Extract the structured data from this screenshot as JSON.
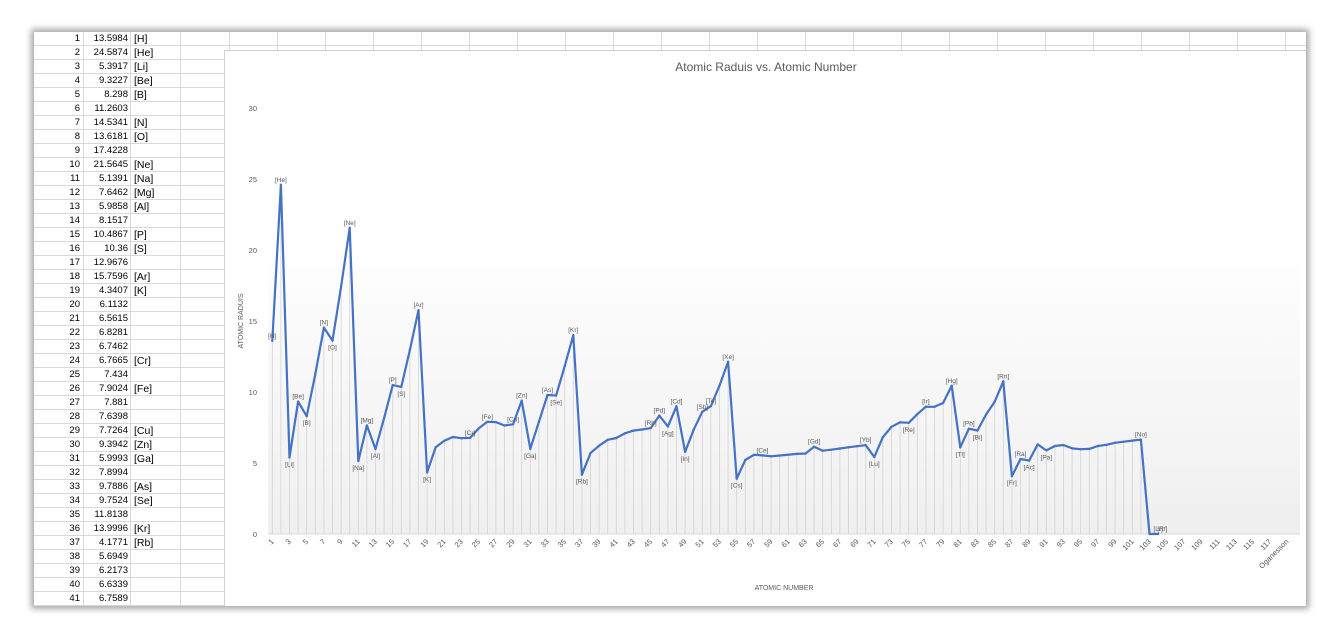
{
  "sheet": {
    "rows": [
      {
        "n": "1",
        "v": "13.5984",
        "l": "[H]"
      },
      {
        "n": "2",
        "v": "24.5874",
        "l": "[He]"
      },
      {
        "n": "3",
        "v": "5.3917",
        "l": "[Li]"
      },
      {
        "n": "4",
        "v": "9.3227",
        "l": "[Be]"
      },
      {
        "n": "5",
        "v": "8.298",
        "l": "[B]"
      },
      {
        "n": "6",
        "v": "11.2603",
        "l": ""
      },
      {
        "n": "7",
        "v": "14.5341",
        "l": "[N]"
      },
      {
        "n": "8",
        "v": "13.6181",
        "l": "[O]"
      },
      {
        "n": "9",
        "v": "17.4228",
        "l": ""
      },
      {
        "n": "10",
        "v": "21.5645",
        "l": "[Ne]"
      },
      {
        "n": "11",
        "v": "5.1391",
        "l": "[Na]"
      },
      {
        "n": "12",
        "v": "7.6462",
        "l": "[Mg]"
      },
      {
        "n": "13",
        "v": "5.9858",
        "l": "[Al]"
      },
      {
        "n": "14",
        "v": "8.1517",
        "l": ""
      },
      {
        "n": "15",
        "v": "10.4867",
        "l": "[P]"
      },
      {
        "n": "16",
        "v": "10.36",
        "l": "[S]"
      },
      {
        "n": "17",
        "v": "12.9676",
        "l": ""
      },
      {
        "n": "18",
        "v": "15.7596",
        "l": "[Ar]"
      },
      {
        "n": "19",
        "v": "4.3407",
        "l": "[K]"
      },
      {
        "n": "20",
        "v": "6.1132",
        "l": ""
      },
      {
        "n": "21",
        "v": "6.5615",
        "l": ""
      },
      {
        "n": "22",
        "v": "6.8281",
        "l": ""
      },
      {
        "n": "23",
        "v": "6.7462",
        "l": ""
      },
      {
        "n": "24",
        "v": "6.7665",
        "l": "[Cr]"
      },
      {
        "n": "25",
        "v": "7.434",
        "l": ""
      },
      {
        "n": "26",
        "v": "7.9024",
        "l": "[Fe]"
      },
      {
        "n": "27",
        "v": "7.881",
        "l": ""
      },
      {
        "n": "28",
        "v": "7.6398",
        "l": ""
      },
      {
        "n": "29",
        "v": "7.7264",
        "l": "[Cu]"
      },
      {
        "n": "30",
        "v": "9.3942",
        "l": "[Zn]"
      },
      {
        "n": "31",
        "v": "5.9993",
        "l": "[Ga]"
      },
      {
        "n": "32",
        "v": "7.8994",
        "l": ""
      },
      {
        "n": "33",
        "v": "9.7886",
        "l": "[As]"
      },
      {
        "n": "34",
        "v": "9.7524",
        "l": "[Se]"
      },
      {
        "n": "35",
        "v": "11.8138",
        "l": ""
      },
      {
        "n": "36",
        "v": "13.9996",
        "l": "[Kr]"
      },
      {
        "n": "37",
        "v": "4.1771",
        "l": "[Rb]"
      },
      {
        "n": "38",
        "v": "5.6949",
        "l": ""
      },
      {
        "n": "39",
        "v": "6.2173",
        "l": ""
      },
      {
        "n": "40",
        "v": "6.6339",
        "l": ""
      },
      {
        "n": "41",
        "v": "6.7589",
        "l": ""
      }
    ]
  },
  "chart_data": {
    "type": "line",
    "title": "Atomic Raduis vs. Atomic Number",
    "xlabel": "ATOMIC NUMBER",
    "ylabel": "ATOMIC RADUIS",
    "ylim": [
      0,
      30
    ],
    "yticks": [
      0,
      5,
      10,
      15,
      20,
      25,
      30
    ],
    "grid": false,
    "legend": "none",
    "line_color": "#4472C4",
    "x_tick_labels": [
      "1",
      "3",
      "5",
      "7",
      "9",
      "11",
      "13",
      "15",
      "17",
      "19",
      "21",
      "23",
      "25",
      "27",
      "29",
      "31",
      "33",
      "35",
      "37",
      "39",
      "41",
      "43",
      "45",
      "47",
      "49",
      "51",
      "53",
      "55",
      "57",
      "59",
      "61",
      "63",
      "65",
      "67",
      "69",
      "71",
      "73",
      "75",
      "77",
      "79",
      "81",
      "83",
      "85",
      "87",
      "89",
      "91",
      "93",
      "95",
      "97",
      "99",
      "101",
      "103",
      "105",
      "107",
      "109",
      "111",
      "113",
      "115",
      "117",
      "Oganesson"
    ],
    "x": [
      1,
      2,
      3,
      4,
      5,
      6,
      7,
      8,
      9,
      10,
      11,
      12,
      13,
      14,
      15,
      16,
      17,
      18,
      19,
      20,
      21,
      22,
      23,
      24,
      25,
      26,
      27,
      28,
      29,
      30,
      31,
      32,
      33,
      34,
      35,
      36,
      37,
      38,
      39,
      40,
      41,
      42,
      43,
      44,
      45,
      46,
      47,
      48,
      49,
      50,
      51,
      52,
      53,
      54,
      55,
      56,
      57,
      58,
      59,
      60,
      61,
      62,
      63,
      64,
      65,
      66,
      67,
      68,
      69,
      70,
      71,
      72,
      73,
      74,
      75,
      76,
      77,
      78,
      79,
      80,
      81,
      82,
      83,
      84,
      85,
      86,
      87,
      88,
      89,
      90,
      91,
      92,
      93,
      94,
      95,
      96,
      97,
      98,
      99,
      100,
      101,
      102,
      103,
      104
    ],
    "values": [
      13.5984,
      24.5874,
      5.3917,
      9.3227,
      8.298,
      11.2603,
      14.5341,
      13.6181,
      17.4228,
      21.5645,
      5.1391,
      7.6462,
      5.9858,
      8.1517,
      10.4867,
      10.36,
      12.9676,
      15.7596,
      4.3407,
      6.1132,
      6.5615,
      6.8281,
      6.7462,
      6.7665,
      7.434,
      7.9024,
      7.881,
      7.6398,
      7.7264,
      9.3942,
      5.9993,
      7.8994,
      9.7886,
      9.7524,
      11.8138,
      13.9996,
      4.1771,
      5.6949,
      6.2173,
      6.6339,
      6.7589,
      7.0924,
      7.28,
      7.3605,
      7.4589,
      8.3369,
      7.5762,
      8.9938,
      5.7864,
      7.3439,
      8.6084,
      9.0096,
      10.4513,
      12.1298,
      3.8939,
      5.2117,
      5.5769,
      5.5387,
      5.473,
      5.525,
      5.582,
      5.6437,
      5.6704,
      6.1501,
      5.8638,
      5.9389,
      6.0215,
      6.1077,
      6.1843,
      6.2542,
      5.4259,
      6.8251,
      7.5496,
      7.864,
      7.8335,
      8.4382,
      8.967,
      8.9588,
      9.2255,
      10.4375,
      6.1082,
      7.4167,
      7.2855,
      8.414,
      9.3175,
      10.7485,
      4.0727,
      5.2784,
      5.17,
      6.3067,
      5.89,
      6.1941,
      6.2655,
      6.026,
      5.9738,
      5.9914,
      6.1979,
      6.2817,
      6.42,
      6.5,
      6.58,
      6.65,
      0,
      0
    ],
    "point_labels": [
      {
        "x": 1,
        "text": "[H]"
      },
      {
        "x": 2,
        "text": "[He]"
      },
      {
        "x": 3,
        "text": "[Li]"
      },
      {
        "x": 4,
        "text": "[Be]"
      },
      {
        "x": 5,
        "text": "[B]"
      },
      {
        "x": 7,
        "text": "[N]"
      },
      {
        "x": 8,
        "text": "[O]"
      },
      {
        "x": 10,
        "text": "[Ne]"
      },
      {
        "x": 11,
        "text": "[Na]"
      },
      {
        "x": 12,
        "text": "[Mg]"
      },
      {
        "x": 13,
        "text": "[Al]"
      },
      {
        "x": 15,
        "text": "[P]"
      },
      {
        "x": 16,
        "text": "[S]"
      },
      {
        "x": 18,
        "text": "[Ar]"
      },
      {
        "x": 19,
        "text": "[K]"
      },
      {
        "x": 24,
        "text": "[Cr]"
      },
      {
        "x": 26,
        "text": "[Fe]"
      },
      {
        "x": 29,
        "text": "[Cu]"
      },
      {
        "x": 30,
        "text": "[Zn]"
      },
      {
        "x": 31,
        "text": "[Ga]"
      },
      {
        "x": 33,
        "text": "[As]"
      },
      {
        "x": 34,
        "text": "[Se]"
      },
      {
        "x": 36,
        "text": "[Kr]"
      },
      {
        "x": 37,
        "text": "[Rb]"
      },
      {
        "x": 45,
        "text": "[Rh]"
      },
      {
        "x": 46,
        "text": "[Pd]"
      },
      {
        "x": 47,
        "text": "[Ag]"
      },
      {
        "x": 48,
        "text": "[Cd]"
      },
      {
        "x": 49,
        "text": "[In]"
      },
      {
        "x": 51,
        "text": "[Sb]"
      },
      {
        "x": 52,
        "text": "[Te]"
      },
      {
        "x": 54,
        "text": "[Xe]"
      },
      {
        "x": 55,
        "text": "[Cs]"
      },
      {
        "x": 58,
        "text": "[Ce]"
      },
      {
        "x": 64,
        "text": "[Gd]"
      },
      {
        "x": 70,
        "text": "[Yb]"
      },
      {
        "x": 71,
        "text": "[Lu]"
      },
      {
        "x": 75,
        "text": "[Re]"
      },
      {
        "x": 77,
        "text": "[Ir]"
      },
      {
        "x": 80,
        "text": "[Hg]"
      },
      {
        "x": 81,
        "text": "[Tl]"
      },
      {
        "x": 82,
        "text": "[Pb]"
      },
      {
        "x": 83,
        "text": "[Bi]"
      },
      {
        "x": 86,
        "text": "[Rn]"
      },
      {
        "x": 87,
        "text": "[Fr]"
      },
      {
        "x": 88,
        "text": "[Ra]"
      },
      {
        "x": 89,
        "text": "[Ac]"
      },
      {
        "x": 91,
        "text": "[Pa]"
      },
      {
        "x": 102,
        "text": "[No]"
      },
      {
        "x": 104,
        "text": "[Lr]"
      },
      {
        "x": 104.5,
        "text": "[Rf]"
      }
    ]
  }
}
